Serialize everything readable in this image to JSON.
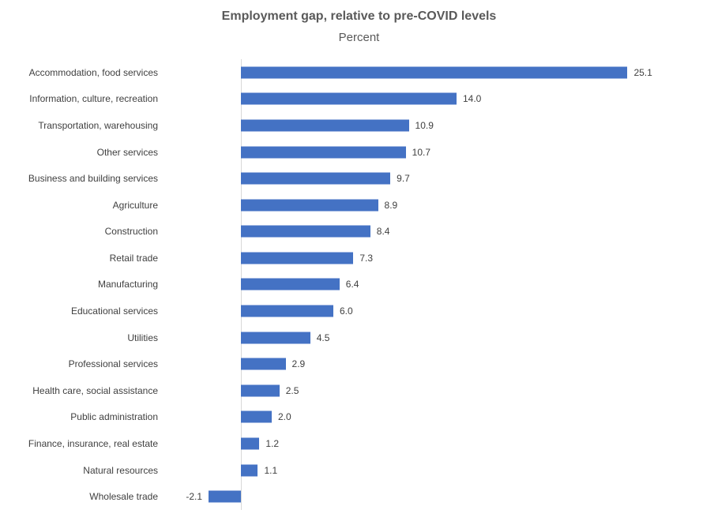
{
  "header": {
    "title": "Employment gap, relative to pre-COVID levels",
    "subtitle": "Percent"
  },
  "chart_data": {
    "type": "bar",
    "orientation": "horizontal",
    "title": "Employment gap, relative to pre-COVID levels",
    "subtitle": "Percent",
    "xlabel": "",
    "ylabel": "",
    "categories": [
      "Accommodation, food services",
      "Information, culture, recreation",
      "Transportation, warehousing",
      "Other services",
      "Business and building services",
      "Agriculture",
      "Construction",
      "Retail trade",
      "Manufacturing",
      "Educational services",
      "Utilities",
      "Professional services",
      "Health care, social assistance",
      "Public administration",
      "Finance, insurance, real estate",
      "Natural resources",
      "Wholesale trade"
    ],
    "values": [
      25.1,
      14.0,
      10.9,
      10.7,
      9.7,
      8.9,
      8.4,
      7.3,
      6.4,
      6.0,
      4.5,
      2.9,
      2.5,
      2.0,
      1.2,
      1.1,
      -2.1
    ],
    "value_labels": [
      "25.1",
      "14.0",
      "10.9",
      "10.7",
      "9.7",
      "8.9",
      "8.4",
      "7.3",
      "6.4",
      "6.0",
      "4.5",
      "2.9",
      "2.5",
      "2.0",
      "1.2",
      "1.1",
      "-2.1"
    ],
    "xlim": [
      -5,
      30
    ],
    "grid": false,
    "legend": false,
    "bar_color": "#4472c4",
    "axis_line_color": "#d9d9d9",
    "label_color": "#404040",
    "title_color": "#595959"
  }
}
